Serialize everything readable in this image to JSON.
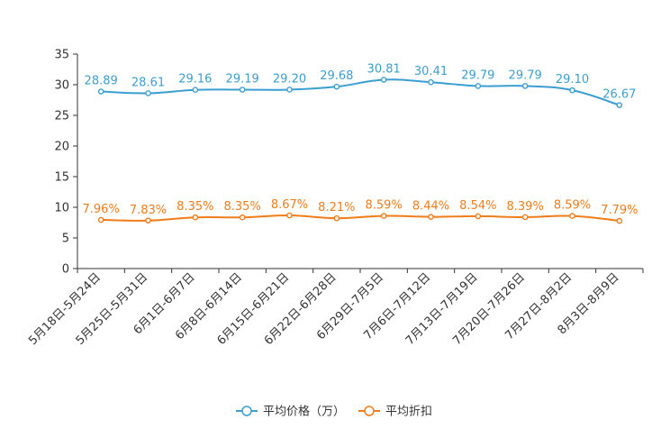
{
  "chart_data": {
    "type": "line",
    "categories": [
      "5月18日-5月24日",
      "5月25日-5月31日",
      "6月1日-6月7日",
      "6月8日-6月14日",
      "6月15日-6月21日",
      "6月22日-6月28日",
      "6月29日-7月5日",
      "7月6日-7月12日",
      "7月13日-7月19日",
      "7月20日-7月26日",
      "7月27日-8月2日",
      "8月3日-8月9日"
    ],
    "ylim": [
      0,
      35
    ],
    "yticks": [
      0,
      5,
      10,
      15,
      20,
      25,
      30,
      35
    ],
    "grid": false,
    "legend_position": "bottom-center",
    "series": [
      {
        "name": "平均价格（万）",
        "color": "#3b9ed1",
        "values": [
          28.89,
          28.61,
          29.16,
          29.19,
          29.2,
          29.68,
          30.81,
          30.41,
          29.79,
          29.79,
          29.1,
          26.67
        ],
        "labels": [
          "28.89",
          "28.61",
          "29.16",
          "29.19",
          "29.20",
          "29.68",
          "30.81",
          "30.41",
          "29.79",
          "29.79",
          "29.10",
          "26.67"
        ]
      },
      {
        "name": "平均折扣",
        "color": "#f07c1a",
        "values": [
          7.96,
          7.83,
          8.35,
          8.35,
          8.67,
          8.21,
          8.59,
          8.44,
          8.54,
          8.39,
          8.59,
          7.79
        ],
        "labels": [
          "7.96%",
          "7.83%",
          "8.35%",
          "8.35%",
          "8.67%",
          "8.21%",
          "8.59%",
          "8.44%",
          "8.54%",
          "8.39%",
          "8.59%",
          "7.79%"
        ]
      }
    ]
  }
}
